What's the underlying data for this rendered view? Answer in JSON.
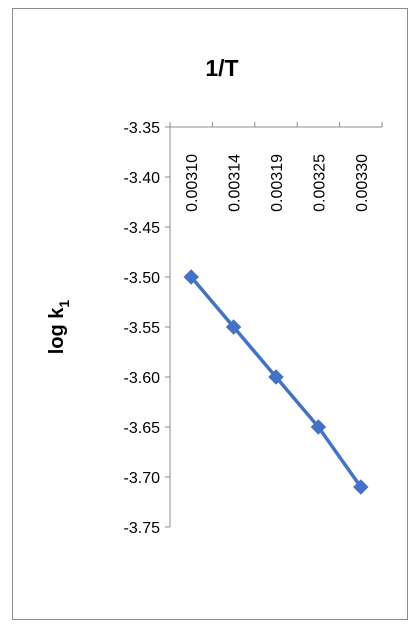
{
  "chart_data": {
    "type": "line",
    "title": "1/T",
    "xlabel": "",
    "ylabel": {
      "main": "log k",
      "subscript": "1"
    },
    "categories": [
      "0.00310",
      "0.00314",
      "0.00319",
      "0.00325",
      "0.00330"
    ],
    "series": [
      {
        "color": "#4472c4",
        "marker": "diamond",
        "values": [
          -3.5,
          -3.55,
          -3.6,
          -3.65,
          -3.71
        ]
      }
    ],
    "ylim": [
      -3.75,
      -3.35
    ],
    "ytick_labels": [
      "-3.35",
      "-3.40",
      "-3.45",
      "-3.50",
      "-3.55",
      "-3.60",
      "-3.65",
      "-3.70",
      "-3.75"
    ],
    "x_axis_position": "top",
    "grid": false,
    "legend": "none"
  }
}
